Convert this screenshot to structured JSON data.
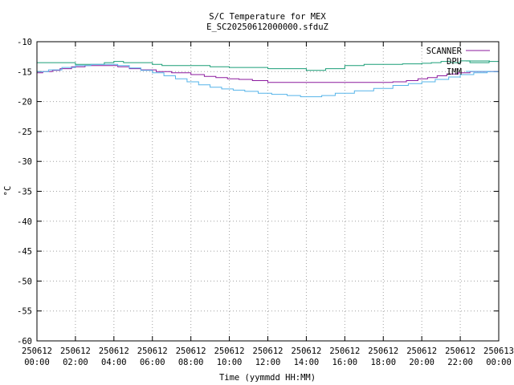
{
  "chart_data": {
    "type": "line",
    "title": "S/C Temperature for MEX",
    "subtitle": "E_SC20250612000000.sfduZ",
    "xlabel": "Time (yymmdd HH:MM)",
    "ylabel": "°C",
    "xlim": [
      0,
      24
    ],
    "ylim": [
      -60,
      -10
    ],
    "x_tick_labels": [
      [
        "250612",
        "00:00"
      ],
      [
        "250612",
        "02:00"
      ],
      [
        "250612",
        "04:00"
      ],
      [
        "250612",
        "06:00"
      ],
      [
        "250612",
        "08:00"
      ],
      [
        "250612",
        "10:00"
      ],
      [
        "250612",
        "12:00"
      ],
      [
        "250612",
        "14:00"
      ],
      [
        "250612",
        "16:00"
      ],
      [
        "250612",
        "18:00"
      ],
      [
        "250612",
        "20:00"
      ],
      [
        "250612",
        "22:00"
      ],
      [
        "250613",
        "00:00"
      ]
    ],
    "y_ticks": [
      -10,
      -15,
      -20,
      -25,
      -30,
      -35,
      -40,
      -45,
      -50,
      -55,
      -60
    ],
    "grid": true,
    "legend_position": "top-right",
    "series": [
      {
        "name": "SCANNER",
        "color": "#8b1a9e",
        "x": [
          0,
          0.3,
          0.8,
          1.2,
          1.8,
          2.5,
          3.6,
          4.2,
          4.8,
          5.4,
          6.2,
          7.0,
          8.0,
          8.7,
          9.3,
          9.9,
          10.5,
          11.2,
          12.0,
          12.6,
          13.5,
          14.5,
          15.5,
          16.5,
          17.5,
          18.5,
          19.2,
          19.8,
          20.3,
          20.8,
          21.3,
          21.9,
          22.5,
          23.2,
          24
        ],
        "y": [
          -15.2,
          -15.0,
          -14.8,
          -14.5,
          -14.2,
          -14.0,
          -14.0,
          -14.2,
          -14.5,
          -14.7,
          -15.0,
          -15.2,
          -15.5,
          -15.8,
          -16.0,
          -16.2,
          -16.3,
          -16.5,
          -16.8,
          -16.8,
          -16.8,
          -16.8,
          -16.8,
          -16.8,
          -16.8,
          -16.7,
          -16.5,
          -16.2,
          -16.0,
          -15.7,
          -15.4,
          -15.2,
          -15.0,
          -15.0,
          -15.0
        ]
      },
      {
        "name": "DPU",
        "color": "#1a9e77",
        "x": [
          0,
          1.5,
          2.0,
          3.5,
          4.0,
          4.5,
          6.0,
          6.5,
          7.0,
          9.0,
          10.0,
          12.0,
          13.0,
          14.0,
          15.0,
          16.0,
          17.0,
          18.0,
          19.0,
          20.0,
          20.5,
          21.0,
          21.5,
          22.0,
          22.5,
          23.5,
          24
        ],
        "y": [
          -13.5,
          -13.5,
          -13.8,
          -13.5,
          -13.3,
          -13.5,
          -13.8,
          -14.0,
          -14.0,
          -14.2,
          -14.3,
          -14.5,
          -14.5,
          -14.8,
          -14.5,
          -14.0,
          -13.8,
          -13.8,
          -13.7,
          -13.6,
          -13.5,
          -13.3,
          -13.5,
          -13.2,
          -13.5,
          -13.3,
          -13.5
        ]
      },
      {
        "name": "IMM",
        "color": "#56b4e9",
        "x": [
          0,
          0.6,
          1.3,
          2.0,
          2.8,
          3.5,
          4.2,
          4.8,
          5.4,
          6.0,
          6.6,
          7.2,
          7.8,
          8.4,
          9.0,
          9.6,
          10.2,
          10.8,
          11.5,
          12.2,
          13.0,
          13.7,
          14.2,
          14.8,
          15.5,
          16.5,
          17.5,
          18.5,
          19.3,
          20.0,
          20.7,
          21.4,
          22.0,
          22.7,
          23.4,
          24
        ],
        "y": [
          -15.0,
          -14.7,
          -14.3,
          -14.0,
          -13.8,
          -13.8,
          -14.0,
          -14.4,
          -14.8,
          -15.2,
          -15.7,
          -16.2,
          -16.7,
          -17.2,
          -17.6,
          -17.9,
          -18.1,
          -18.3,
          -18.6,
          -18.8,
          -19.0,
          -19.2,
          -19.2,
          -19.0,
          -18.6,
          -18.2,
          -17.8,
          -17.3,
          -17.0,
          -16.7,
          -16.3,
          -15.9,
          -15.5,
          -15.2,
          -15.0,
          -14.8
        ]
      }
    ]
  }
}
